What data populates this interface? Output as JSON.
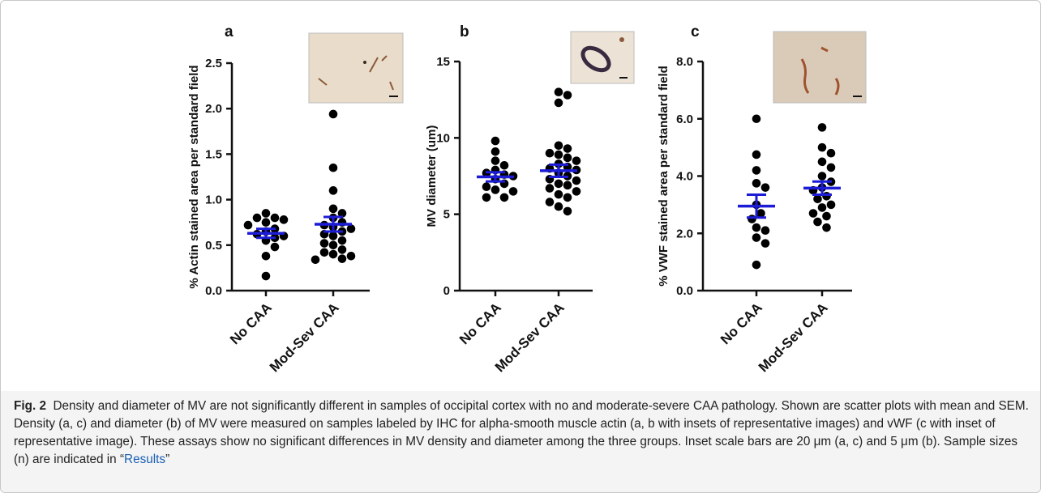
{
  "chart_data": [
    {
      "type": "scatter",
      "panel": "a",
      "y_label": "% Actin stained area per standard field",
      "categories": [
        "No CAA",
        "Mod-Sev CAA"
      ],
      "points": [
        [
          0.85,
          0.8,
          0.8,
          0.78,
          0.75,
          0.72,
          0.68,
          0.65,
          0.62,
          0.6,
          0.58,
          0.55,
          0.48,
          0.38,
          0.16
        ],
        [
          1.94,
          1.35,
          1.1,
          0.9,
          0.85,
          0.8,
          0.75,
          0.72,
          0.7,
          0.68,
          0.65,
          0.62,
          0.6,
          0.55,
          0.52,
          0.5,
          0.45,
          0.42,
          0.4,
          0.38,
          0.35,
          0.34
        ]
      ],
      "mean": [
        0.63,
        0.73
      ],
      "sem": [
        0.05,
        0.08
      ],
      "color": "#000000",
      "mean_color": "#1c1cd6",
      "ylim": [
        0,
        2.5
      ],
      "yticks": [
        {
          "value": 0,
          "label": "0.0"
        },
        0.5,
        {
          "value": 1,
          "label": "1.0"
        },
        1.5,
        {
          "value": 2,
          "label": "2.0"
        },
        2.5
      ]
    },
    {
      "type": "scatter",
      "panel": "b",
      "y_label": "MV diameter (um)",
      "categories": [
        "No CAA",
        "Mod-Sev CAA"
      ],
      "points": [
        [
          9.8,
          9.1,
          8.5,
          8.2,
          7.9,
          7.7,
          7.6,
          7.5,
          7.3,
          7.0,
          6.8,
          6.6,
          6.5,
          6.1,
          6.1
        ],
        [
          13.0,
          12.8,
          12.3,
          9.5,
          9.3,
          9.0,
          8.9,
          8.7,
          8.5,
          8.3,
          8.1,
          8.0,
          7.9,
          7.7,
          7.5,
          7.3,
          7.2,
          7.0,
          6.9,
          6.7,
          6.5,
          6.3,
          6.1,
          5.8,
          5.5,
          5.2
        ]
      ],
      "mean": [
        7.45,
        7.85
      ],
      "sem": [
        0.3,
        0.4
      ],
      "color": "#000000",
      "mean_color": "#1c1cd6",
      "ylim": [
        0,
        15
      ],
      "yticks": [
        0,
        5,
        10,
        15
      ]
    },
    {
      "type": "scatter",
      "panel": "c",
      "y_label": "% VWF  stained area per standard field",
      "categories": [
        "No CAA",
        "Mod-Sev CAA"
      ],
      "points": [
        [
          6.0,
          4.75,
          4.2,
          3.75,
          3.6,
          3.0,
          2.7,
          2.5,
          2.2,
          2.1,
          1.85,
          1.65,
          0.9
        ],
        [
          5.7,
          5.0,
          4.8,
          4.5,
          4.3,
          4.0,
          3.8,
          3.6,
          3.5,
          3.3,
          3.2,
          3.0,
          2.9,
          2.7,
          2.6,
          2.4,
          2.2
        ]
      ],
      "mean": [
        2.95,
        3.58
      ],
      "sem": [
        0.4,
        0.23
      ],
      "color": "#000000",
      "mean_color": "#1c1cd6",
      "ylim": [
        0,
        8
      ],
      "yticks": [
        {
          "value": 0,
          "label": "0.0"
        },
        {
          "value": 2,
          "label": "2.0"
        },
        {
          "value": 4,
          "label": "4.0"
        },
        {
          "value": 6,
          "label": "6.0"
        },
        {
          "value": 8,
          "label": "8.0"
        }
      ]
    }
  ],
  "caption": {
    "label": "Fig. 2",
    "text": "Density and diameter of MV are not significantly different in samples of occipital cortex with no and moderate-severe CAA pathology. Shown are scatter plots with mean and SEM. Density (a, c) and diameter (b) of MV were measured on samples labeled by IHC for alpha-smooth muscle actin (a, b with insets of representative images) and vWF (c with inset of representative image). These assays show no significant differences in MV density and diameter among the three groups. Inset scale bars are 20 μm (a, c) and 5 μm (b). Sample sizes (n) are indicated in “",
    "link": "Results",
    "end": "”"
  }
}
